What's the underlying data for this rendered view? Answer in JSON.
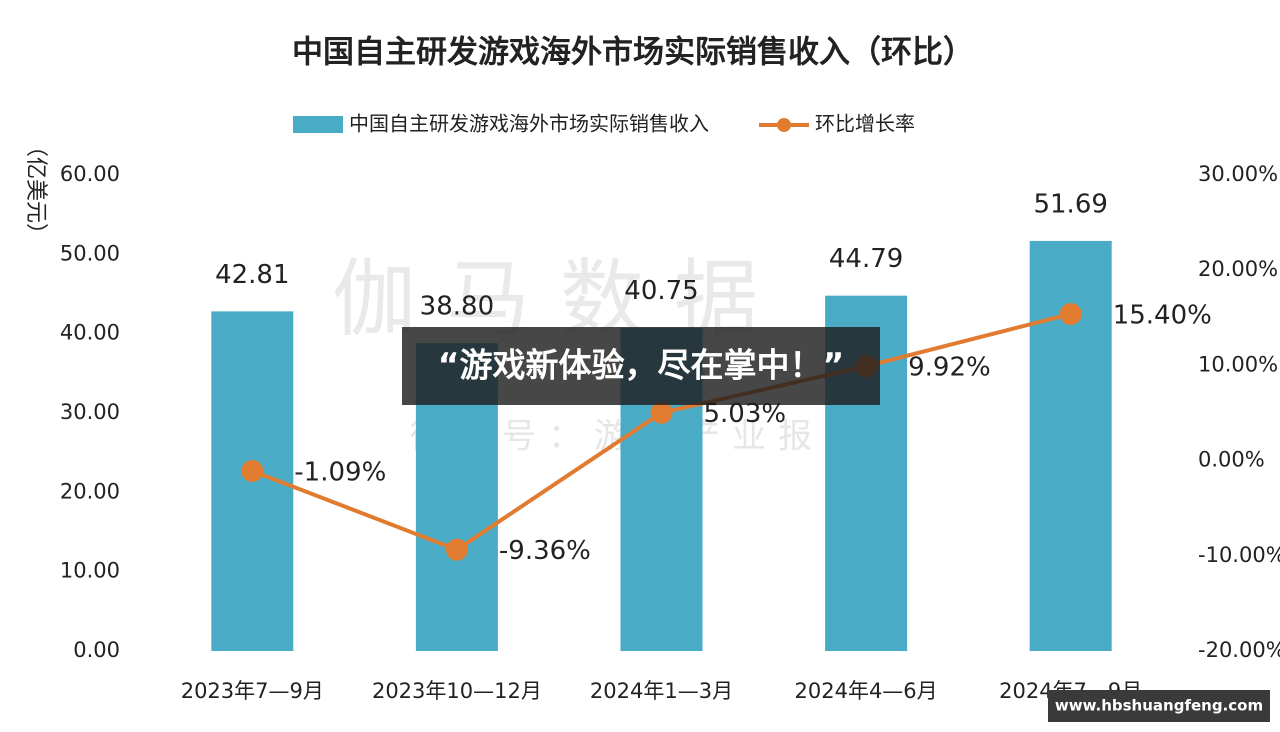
{
  "chart_data": {
    "type": "bar-line",
    "title": "中国自主研发游戏海外市场实际销售收入（环比）",
    "y_label": "（亿美元）",
    "categories": [
      "2023年7—9月",
      "2023年10—12月",
      "2024年1—3月",
      "2024年4—6月",
      "2024年7—9月"
    ],
    "series": [
      {
        "name": "中国自主研发游戏海外市场实际销售收入",
        "type": "bar",
        "color": "#4aabc6",
        "values": [
          42.81,
          38.8,
          40.75,
          44.79,
          51.69
        ],
        "value_labels": [
          "42.81",
          "38.80",
          "40.75",
          "44.79",
          "51.69"
        ]
      },
      {
        "name": "环比增长率",
        "type": "line",
        "axis": "y2",
        "color": "#e07b30",
        "values": [
          -1.09,
          -9.36,
          5.03,
          9.92,
          15.4
        ],
        "value_labels": [
          "-1.09%",
          "-9.36%",
          "5.03%",
          "9.92%",
          "15.40%"
        ]
      }
    ],
    "ylim": [
      0,
      60
    ],
    "yticks": [
      {
        "value": 0,
        "label": "0.00"
      },
      {
        "value": 10,
        "label": "10.00"
      },
      {
        "value": 20,
        "label": "20.00"
      },
      {
        "value": 30,
        "label": "30.00"
      },
      {
        "value": 40,
        "label": "40.00"
      },
      {
        "value": 50,
        "label": "50.00"
      },
      {
        "value": 60,
        "label": "60.00"
      }
    ],
    "y2lim": [
      -20,
      30
    ],
    "y2ticks": [
      {
        "value": -20,
        "label": "-20.00%"
      },
      {
        "value": -10,
        "label": "-10.00%"
      },
      {
        "value": 0,
        "label": "0.00%"
      },
      {
        "value": 10,
        "label": "10.00%"
      },
      {
        "value": 20,
        "label": "20.00%"
      },
      {
        "value": 30,
        "label": "30.00%"
      }
    ],
    "legend": "top",
    "grid": false
  },
  "watermark": {
    "brand": "伽马数据",
    "wechat": "微信号：游戏产业报告"
  },
  "banner": "“游戏新体验，尽在掌中！”",
  "site": "www.hbshuangfeng.com"
}
